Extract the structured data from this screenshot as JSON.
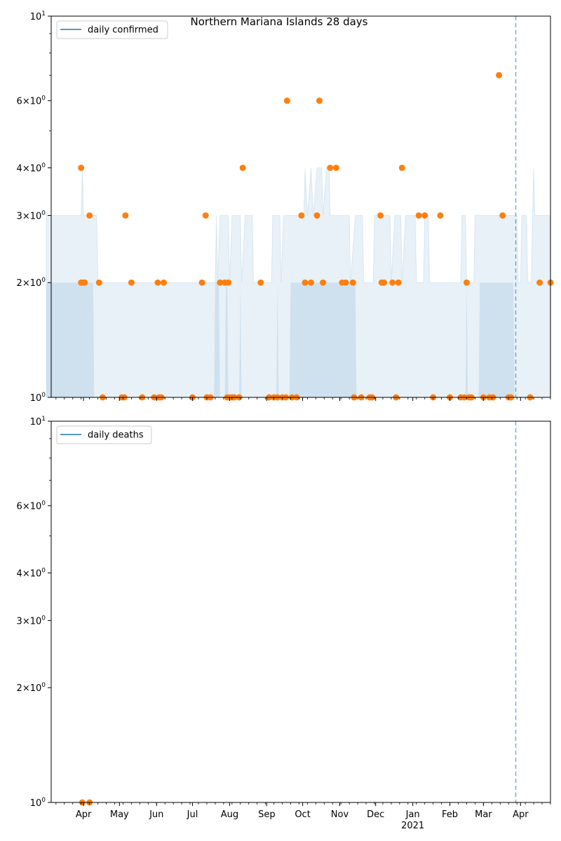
{
  "figure": {
    "title": "Northern Mariana Islands 28 days"
  },
  "chart_data": [
    {
      "type": "scatter",
      "panel": "top",
      "title": "Northern Mariana Islands 28 days",
      "xlabel": "",
      "ylabel": "",
      "y_scale": "log",
      "ylim": [
        1,
        10
      ],
      "y_ticks": [
        {
          "label_base": "10",
          "label_exp": "0",
          "value": 1
        },
        {
          "label_base": "2×10",
          "label_exp": "0",
          "value": 2
        },
        {
          "label_base": "3×10",
          "label_exp": "0",
          "value": 3
        },
        {
          "label_base": "4×10",
          "label_exp": "0",
          "value": 4
        },
        {
          "label_base": "6×10",
          "label_exp": "0",
          "value": 6
        },
        {
          "label_base": "10",
          "label_exp": "1",
          "value": 10
        }
      ],
      "legend": {
        "label": "daily confirmed",
        "placement": "top-left",
        "color": "#1f77b4"
      },
      "vline": {
        "date": "2021-03-28",
        "style": "dashed",
        "color": "#1f77b4"
      },
      "band_color": "#1f77b4",
      "point_color": "#ff7f0e",
      "band_outer": [
        [
          "2020-03-01",
          3
        ],
        [
          "2020-03-30",
          3
        ],
        [
          "2020-03-31",
          4
        ],
        [
          "2020-04-01",
          3
        ],
        [
          "2020-04-12",
          3
        ],
        [
          "2020-04-13",
          2
        ],
        [
          "2020-07-20",
          2
        ],
        [
          "2020-07-21",
          3
        ],
        [
          "2020-07-22",
          2
        ],
        [
          "2020-07-24",
          3
        ],
        [
          "2020-07-31",
          3
        ],
        [
          "2020-08-01",
          2
        ],
        [
          "2020-08-03",
          3
        ],
        [
          "2020-08-10",
          3
        ],
        [
          "2020-08-11",
          2
        ],
        [
          "2020-08-14",
          3
        ],
        [
          "2020-08-20",
          3
        ],
        [
          "2020-08-21",
          2
        ],
        [
          "2020-09-05",
          2
        ],
        [
          "2020-09-06",
          3
        ],
        [
          "2020-09-12",
          3
        ],
        [
          "2020-09-13",
          2
        ],
        [
          "2020-09-15",
          3
        ],
        [
          "2020-10-02",
          3
        ],
        [
          "2020-10-03",
          4
        ],
        [
          "2020-10-05",
          3
        ],
        [
          "2020-10-08",
          4
        ],
        [
          "2020-10-10",
          3
        ],
        [
          "2020-10-13",
          4
        ],
        [
          "2020-10-17",
          4
        ],
        [
          "2020-10-18",
          3
        ],
        [
          "2020-10-21",
          4
        ],
        [
          "2020-10-23",
          4
        ],
        [
          "2020-10-24",
          3
        ],
        [
          "2020-11-09",
          3
        ],
        [
          "2020-11-10",
          2
        ],
        [
          "2020-11-14",
          3
        ],
        [
          "2020-11-20",
          3
        ],
        [
          "2020-11-21",
          2
        ],
        [
          "2020-11-29",
          2
        ],
        [
          "2020-11-30",
          3
        ],
        [
          "2020-12-13",
          3
        ],
        [
          "2020-12-14",
          2
        ],
        [
          "2020-12-17",
          3
        ],
        [
          "2020-12-22",
          3
        ],
        [
          "2020-12-23",
          2
        ],
        [
          "2020-12-26",
          3
        ],
        [
          "2021-01-03",
          3
        ],
        [
          "2021-01-04",
          2
        ],
        [
          "2021-01-10",
          2
        ],
        [
          "2021-01-11",
          3
        ],
        [
          "2021-01-14",
          3
        ],
        [
          "2021-01-15",
          2
        ],
        [
          "2021-02-10",
          2
        ],
        [
          "2021-02-11",
          3
        ],
        [
          "2021-02-14",
          3
        ],
        [
          "2021-02-15",
          2
        ],
        [
          "2021-02-21",
          2
        ],
        [
          "2021-02-22",
          3
        ],
        [
          "2021-03-29",
          3
        ],
        [
          "2021-03-30",
          2
        ],
        [
          "2021-04-01",
          2
        ],
        [
          "2021-04-02",
          3
        ],
        [
          "2021-04-06",
          3
        ],
        [
          "2021-04-07",
          2
        ],
        [
          "2021-04-10",
          2
        ],
        [
          "2021-04-11",
          3
        ],
        [
          "2021-04-12",
          4
        ],
        [
          "2021-04-13",
          3
        ],
        [
          "2021-04-26",
          3
        ]
      ],
      "band_inner": [
        [
          "2020-03-01",
          2
        ],
        [
          "2020-04-09",
          2
        ],
        [
          "2020-04-10",
          1
        ],
        [
          "2020-07-19",
          1
        ],
        [
          "2020-07-20",
          2
        ],
        [
          "2020-07-23",
          2
        ],
        [
          "2020-07-24",
          1
        ],
        [
          "2020-07-28",
          1
        ],
        [
          "2020-07-29",
          2
        ],
        [
          "2020-07-30",
          2
        ],
        [
          "2020-07-31",
          1
        ],
        [
          "2020-08-09",
          1
        ],
        [
          "2020-08-10",
          2
        ],
        [
          "2020-08-11",
          1
        ],
        [
          "2020-09-09",
          1
        ],
        [
          "2020-09-10",
          2
        ],
        [
          "2020-09-11",
          1
        ],
        [
          "2020-09-20",
          1
        ],
        [
          "2020-09-21",
          2
        ],
        [
          "2020-11-14",
          2
        ],
        [
          "2020-11-15",
          1
        ],
        [
          "2021-02-14",
          1
        ],
        [
          "2021-02-15",
          2
        ],
        [
          "2021-02-16",
          1
        ],
        [
          "2021-02-25",
          1
        ],
        [
          "2021-02-26",
          2
        ],
        [
          "2021-03-26",
          2
        ],
        [
          "2021-03-27",
          1
        ],
        [
          "2021-04-26",
          1
        ]
      ],
      "points": [
        [
          "2020-03-30",
          4
        ],
        [
          "2020-03-30",
          2
        ],
        [
          "2020-04-01",
          2
        ],
        [
          "2020-04-02",
          2
        ],
        [
          "2020-04-06",
          3
        ],
        [
          "2020-04-14",
          2
        ],
        [
          "2020-04-17",
          1
        ],
        [
          "2020-05-03",
          1
        ],
        [
          "2020-05-05",
          1
        ],
        [
          "2020-05-06",
          3
        ],
        [
          "2020-05-11",
          2
        ],
        [
          "2020-05-20",
          1
        ],
        [
          "2020-05-30",
          1
        ],
        [
          "2020-06-02",
          2
        ],
        [
          "2020-06-03",
          1
        ],
        [
          "2020-06-05",
          1
        ],
        [
          "2020-06-07",
          2
        ],
        [
          "2020-07-01",
          1
        ],
        [
          "2020-07-09",
          2
        ],
        [
          "2020-07-12",
          3
        ],
        [
          "2020-07-13",
          1
        ],
        [
          "2020-07-16",
          1
        ],
        [
          "2020-07-24",
          2
        ],
        [
          "2020-07-28",
          2
        ],
        [
          "2020-07-30",
          1
        ],
        [
          "2020-07-31",
          2
        ],
        [
          "2020-08-01",
          1
        ],
        [
          "2020-08-03",
          1
        ],
        [
          "2020-08-05",
          1
        ],
        [
          "2020-08-09",
          1
        ],
        [
          "2020-08-12",
          4
        ],
        [
          "2020-08-27",
          2
        ],
        [
          "2020-09-03",
          1
        ],
        [
          "2020-09-07",
          1
        ],
        [
          "2020-09-10",
          1
        ],
        [
          "2020-09-14",
          1
        ],
        [
          "2020-09-17",
          1
        ],
        [
          "2020-09-18",
          6
        ],
        [
          "2020-09-22",
          1
        ],
        [
          "2020-09-26",
          1
        ],
        [
          "2020-09-30",
          3
        ],
        [
          "2020-10-03",
          2
        ],
        [
          "2020-10-08",
          2
        ],
        [
          "2020-10-13",
          3
        ],
        [
          "2020-10-15",
          6
        ],
        [
          "2020-10-18",
          2
        ],
        [
          "2020-10-24",
          4
        ],
        [
          "2020-10-29",
          4
        ],
        [
          "2020-11-03",
          2
        ],
        [
          "2020-11-06",
          2
        ],
        [
          "2020-11-12",
          2
        ],
        [
          "2020-11-13",
          1
        ],
        [
          "2020-11-19",
          1
        ],
        [
          "2020-11-26",
          1
        ],
        [
          "2020-11-28",
          1
        ],
        [
          "2020-12-05",
          3
        ],
        [
          "2020-12-06",
          2
        ],
        [
          "2020-12-08",
          2
        ],
        [
          "2020-12-15",
          2
        ],
        [
          "2020-12-18",
          1
        ],
        [
          "2020-12-20",
          2
        ],
        [
          "2020-12-23",
          4
        ],
        [
          "2021-01-06",
          3
        ],
        [
          "2021-01-11",
          3
        ],
        [
          "2021-01-18",
          1
        ],
        [
          "2021-01-24",
          3
        ],
        [
          "2021-02-01",
          1
        ],
        [
          "2021-02-10",
          1
        ],
        [
          "2021-02-13",
          1
        ],
        [
          "2021-02-15",
          2
        ],
        [
          "2021-02-17",
          1
        ],
        [
          "2021-02-19",
          1
        ],
        [
          "2021-03-01",
          1
        ],
        [
          "2021-03-06",
          1
        ],
        [
          "2021-03-09",
          1
        ],
        [
          "2021-03-14",
          7
        ],
        [
          "2021-03-17",
          3
        ],
        [
          "2021-03-22",
          1
        ],
        [
          "2021-03-24",
          1
        ],
        [
          "2021-04-09",
          1
        ],
        [
          "2021-04-17",
          2
        ],
        [
          "2021-04-26",
          2
        ]
      ]
    },
    {
      "type": "scatter",
      "panel": "bottom",
      "title": "",
      "xlabel": "",
      "ylabel": "",
      "y_scale": "log",
      "ylim": [
        1,
        10
      ],
      "y_ticks": [
        {
          "label_base": "10",
          "label_exp": "0",
          "value": 1
        },
        {
          "label_base": "2×10",
          "label_exp": "0",
          "value": 2
        },
        {
          "label_base": "3×10",
          "label_exp": "0",
          "value": 3
        },
        {
          "label_base": "4×10",
          "label_exp": "0",
          "value": 4
        },
        {
          "label_base": "6×10",
          "label_exp": "0",
          "value": 6
        },
        {
          "label_base": "10",
          "label_exp": "1",
          "value": 10
        }
      ],
      "legend": {
        "label": "daily deaths",
        "placement": "top-left",
        "color": "#1f77b4"
      },
      "vline": {
        "date": "2021-03-28",
        "style": "dashed",
        "color": "#1f77b4"
      },
      "point_color": "#ff7f0e",
      "points": [
        [
          "2020-03-31",
          1
        ],
        [
          "2020-04-06",
          1
        ]
      ],
      "x_ticks": [
        {
          "date": "2020-04-01",
          "label": "Apr"
        },
        {
          "date": "2020-05-01",
          "label": "May"
        },
        {
          "date": "2020-06-01",
          "label": "Jun"
        },
        {
          "date": "2020-07-01",
          "label": "Jul"
        },
        {
          "date": "2020-08-01",
          "label": "Aug"
        },
        {
          "date": "2020-09-01",
          "label": "Sep"
        },
        {
          "date": "2020-10-01",
          "label": "Oct"
        },
        {
          "date": "2020-11-01",
          "label": "Nov"
        },
        {
          "date": "2020-12-01",
          "label": "Dec"
        },
        {
          "date": "2021-01-01",
          "label": "Jan",
          "sublabel": "2021"
        },
        {
          "date": "2021-02-01",
          "label": "Feb"
        },
        {
          "date": "2021-03-01",
          "label": "Mar"
        },
        {
          "date": "2021-04-01",
          "label": "Apr"
        }
      ]
    }
  ],
  "x_range": [
    "2020-03-05",
    "2021-04-26"
  ]
}
